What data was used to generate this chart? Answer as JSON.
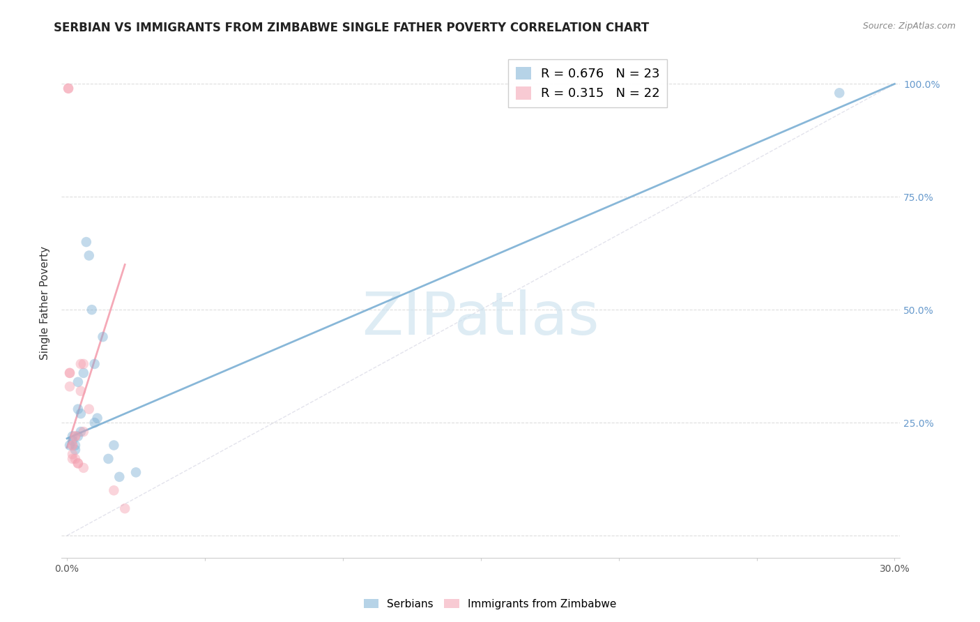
{
  "title": "SERBIAN VS IMMIGRANTS FROM ZIMBABWE SINGLE FATHER POVERTY CORRELATION CHART",
  "source": "Source: ZipAtlas.com",
  "ylabel": "Single Father Poverty",
  "legend_serbian": {
    "R": 0.676,
    "N": 23
  },
  "legend_zimbabwe": {
    "R": 0.315,
    "N": 22
  },
  "serbian_scatter_x": [
    0.001,
    0.002,
    0.002,
    0.003,
    0.003,
    0.004,
    0.004,
    0.004,
    0.005,
    0.005,
    0.006,
    0.007,
    0.008,
    0.009,
    0.01,
    0.01,
    0.011,
    0.013,
    0.015,
    0.017,
    0.019,
    0.025,
    0.28
  ],
  "serbian_scatter_y": [
    0.2,
    0.22,
    0.21,
    0.2,
    0.19,
    0.22,
    0.28,
    0.34,
    0.23,
    0.27,
    0.36,
    0.65,
    0.62,
    0.5,
    0.38,
    0.25,
    0.26,
    0.44,
    0.17,
    0.2,
    0.13,
    0.14,
    0.98
  ],
  "zimbabwe_scatter_x": [
    0.0005,
    0.0005,
    0.001,
    0.001,
    0.001,
    0.002,
    0.002,
    0.002,
    0.002,
    0.003,
    0.003,
    0.003,
    0.004,
    0.004,
    0.005,
    0.005,
    0.006,
    0.006,
    0.006,
    0.008,
    0.017,
    0.021
  ],
  "zimbabwe_scatter_y": [
    0.99,
    0.99,
    0.36,
    0.36,
    0.33,
    0.2,
    0.2,
    0.18,
    0.17,
    0.22,
    0.22,
    0.17,
    0.16,
    0.16,
    0.32,
    0.38,
    0.38,
    0.23,
    0.15,
    0.28,
    0.1,
    0.06
  ],
  "serbian_line_x": [
    0.0,
    0.3
  ],
  "serbian_line_y": [
    0.215,
    1.0
  ],
  "zimbabwe_line_x": [
    0.0,
    0.021
  ],
  "zimbabwe_line_y": [
    0.195,
    0.6
  ],
  "diagonal_line_x": [
    0.0,
    0.3
  ],
  "diagonal_line_y": [
    0.0,
    1.0
  ],
  "xlim": [
    -0.002,
    0.302
  ],
  "ylim": [
    -0.05,
    1.08
  ],
  "yticks": [
    0.0,
    0.25,
    0.5,
    0.75,
    1.0
  ],
  "ytick_labels_right": [
    "",
    "25.0%",
    "50.0%",
    "75.0%",
    "100.0%"
  ],
  "xticks": [
    0.0,
    0.05,
    0.1,
    0.15,
    0.2,
    0.25,
    0.3
  ],
  "xtick_labels": [
    "0.0%",
    "",
    "",
    "",
    "",
    "",
    "30.0%"
  ],
  "scatter_size": 110,
  "scatter_alpha": 0.45,
  "background_color": "#ffffff",
  "grid_color": "#dddddd",
  "serbian_color": "#7bafd4",
  "zimbabwe_color": "#f4a0b0",
  "watermark_text": "ZIPatlas",
  "watermark_color": "#d0e4f0",
  "title_fontsize": 12,
  "source_fontsize": 9,
  "legend_fontsize": 13,
  "axis_tick_fontsize": 10,
  "right_tick_color": "#6699cc"
}
